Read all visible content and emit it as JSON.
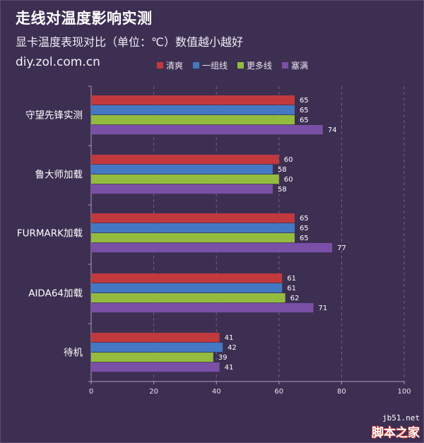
{
  "header": {
    "title": "走线对温度影响实测",
    "subtitle": "显卡温度表现对比（单位：℃）数值越小越好",
    "source": "diy.zol.com.cn"
  },
  "watermark": {
    "site": "jb51.net",
    "name": "脚本之家"
  },
  "chart_data": {
    "type": "bar",
    "orientation": "horizontal",
    "title": "走线对温度影响实测",
    "subtitle": "显卡温度表现对比（单位：℃）数值越小越好",
    "categories": [
      "守望先锋实测",
      "鲁大师加载",
      "FURMARK加载",
      "AIDA64加载",
      "待机"
    ],
    "series": [
      {
        "name": "清爽",
        "color": "#c1393d",
        "values": [
          65,
          60,
          65,
          61,
          41
        ]
      },
      {
        "name": "一组线",
        "color": "#4478c2",
        "values": [
          65,
          58,
          65,
          61,
          42
        ]
      },
      {
        "name": "更多线",
        "color": "#93bc3e",
        "values": [
          65,
          60,
          65,
          62,
          39
        ]
      },
      {
        "name": "塞满",
        "color": "#7a4fa6",
        "values": [
          74,
          58,
          77,
          71,
          41
        ]
      }
    ],
    "xlim": [
      0,
      100
    ],
    "ticks": [
      0,
      20,
      40,
      60,
      80,
      100
    ],
    "grid": true,
    "legend": "top"
  }
}
